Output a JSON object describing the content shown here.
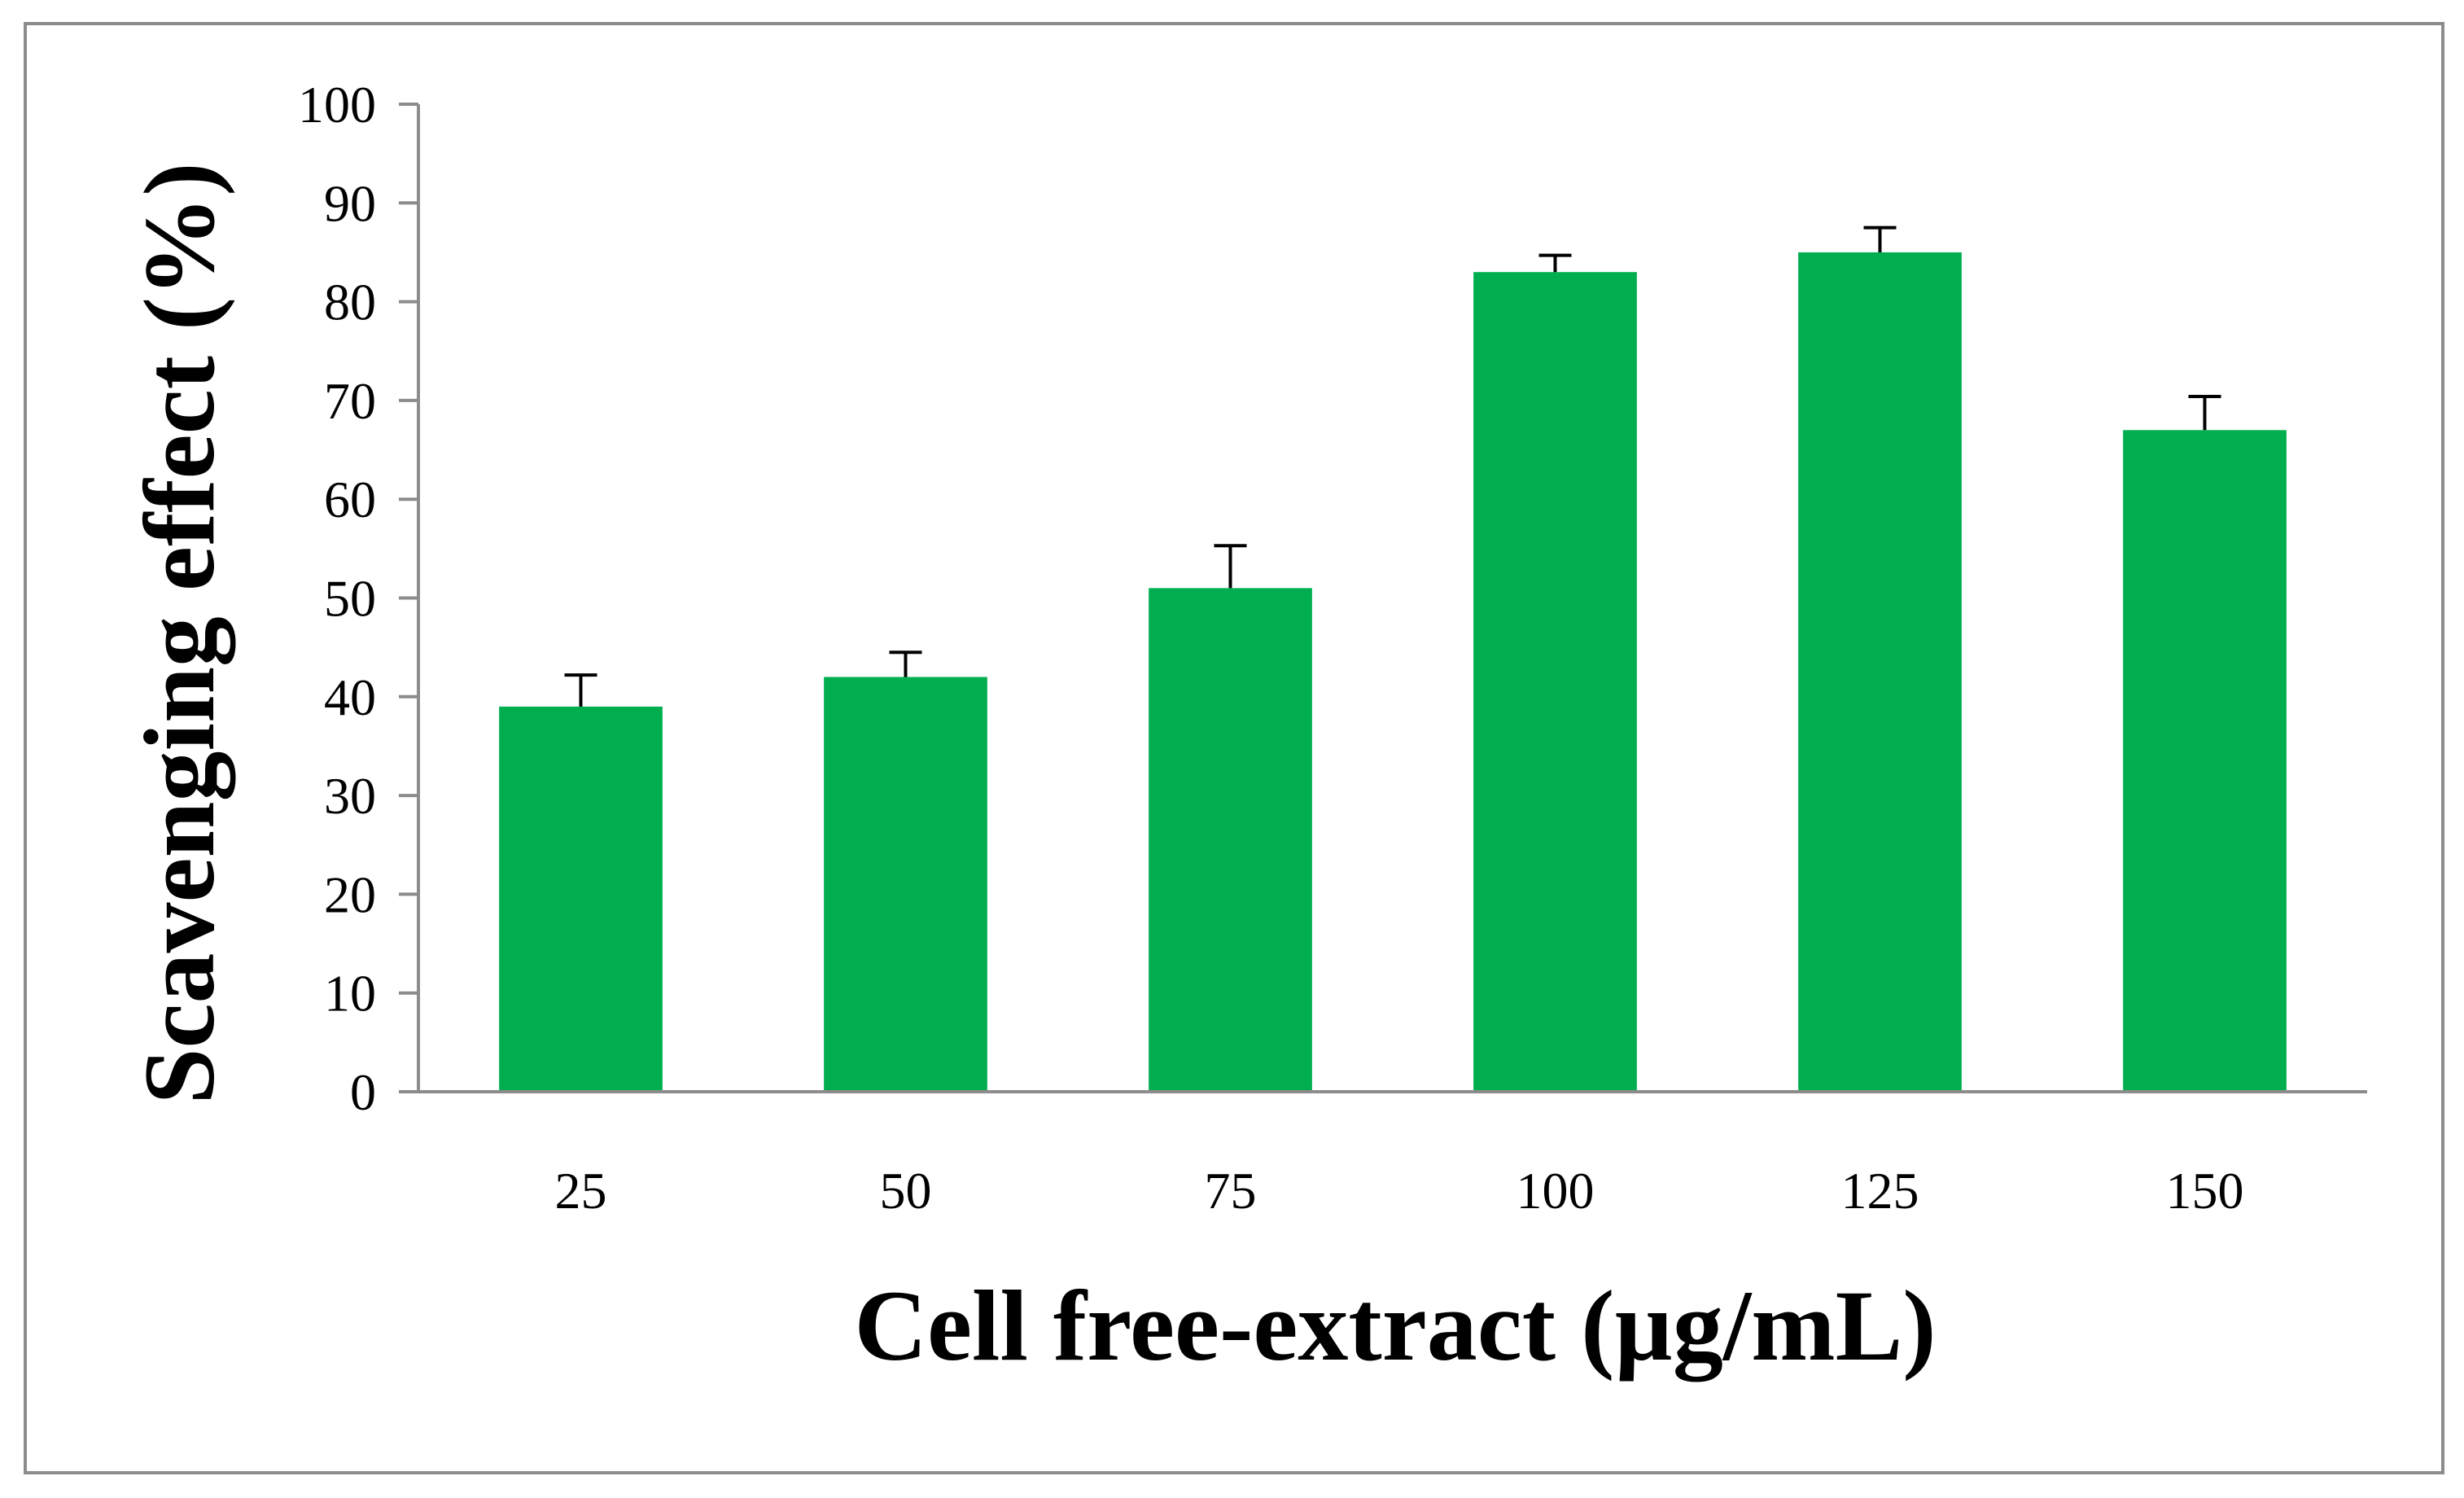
{
  "colors": {
    "bar": "#00AE4F",
    "axis": "#8C8C8C",
    "frame": "#8C8C8C",
    "error_bar": "#000000",
    "text": "#000000"
  },
  "chart_data": {
    "type": "bar",
    "title": "",
    "xlabel": "Cell free-extract (µg/mL)",
    "ylabel": "Scavenging effect (%)",
    "categories": [
      "25",
      "50",
      "75",
      "100",
      "125",
      "150"
    ],
    "series": [
      {
        "name": "Scavenging effect",
        "values": [
          39,
          42,
          51,
          83,
          85,
          67
        ],
        "error_plus": [
          3.2,
          2.5,
          4.3,
          1.7,
          2.5,
          3.4
        ]
      }
    ],
    "ylim": [
      0,
      100
    ],
    "yticks": [
      "0",
      "10",
      "20",
      "30",
      "40",
      "50",
      "60",
      "70",
      "80",
      "90",
      "100"
    ],
    "grid": false,
    "legend": "none"
  }
}
